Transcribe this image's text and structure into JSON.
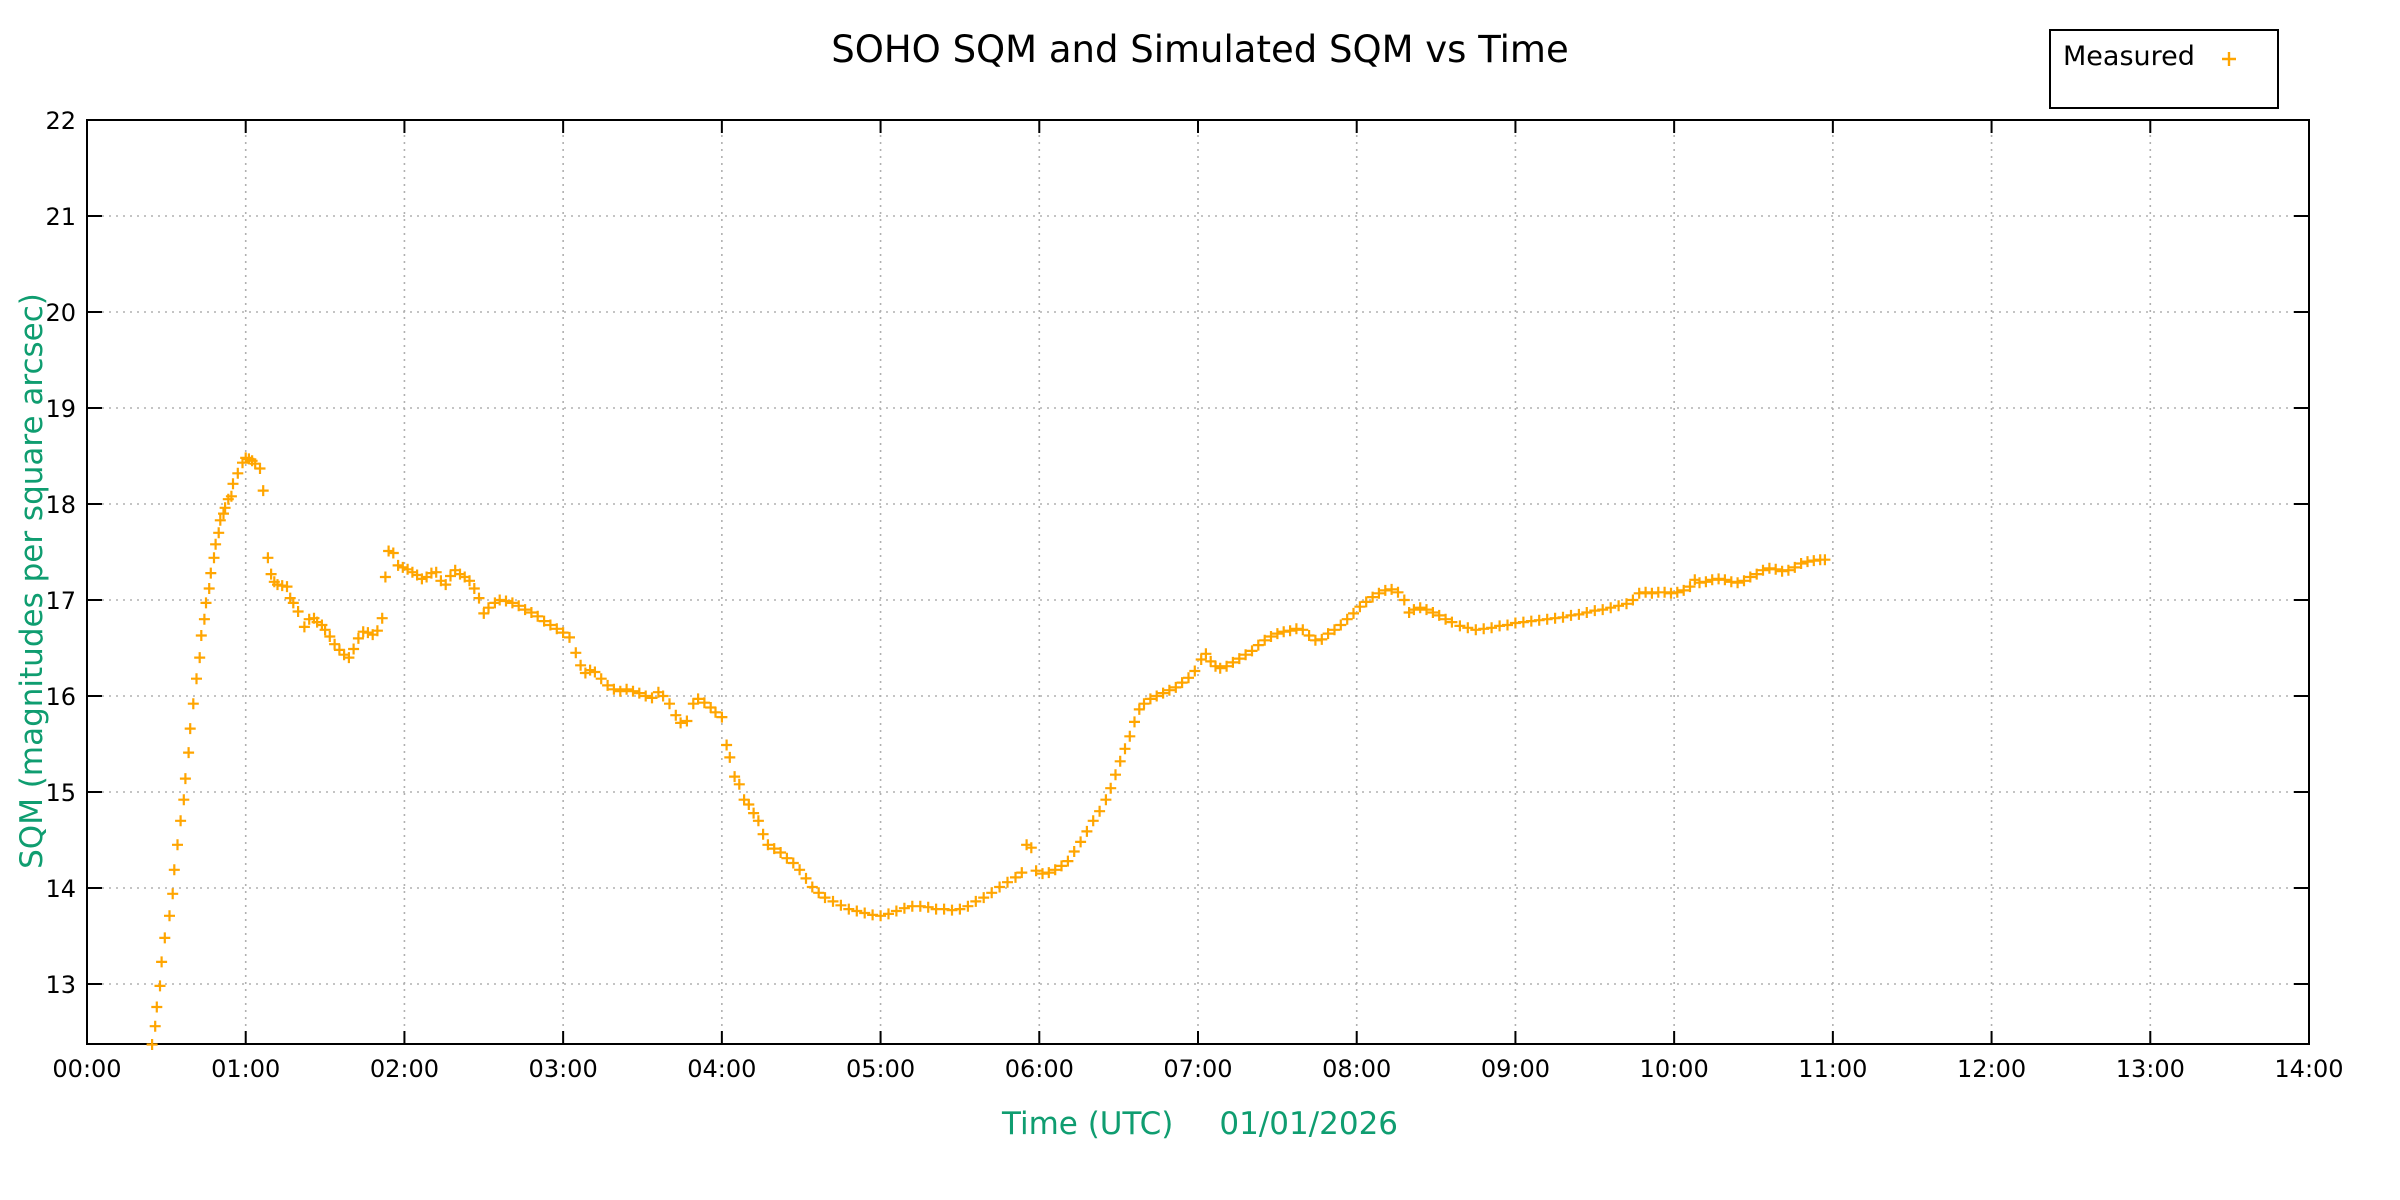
{
  "chart": {
    "title": "SOHO SQM and Simulated SQM vs Time",
    "background": "#ffffff"
  },
  "legend": {
    "label": "Measured",
    "marker": "plus-icon",
    "marker_color": "#FFA500",
    "position": "top-right-outside"
  },
  "axes": {
    "x": {
      "label": "Time (UTC)",
      "date": "01/01/2026",
      "color": "#0f9d70",
      "ticks": [
        "00:00",
        "01:00",
        "02:00",
        "03:00",
        "04:00",
        "05:00",
        "06:00",
        "07:00",
        "08:00",
        "09:00",
        "10:00",
        "11:00",
        "12:00",
        "13:00",
        "14:00"
      ]
    },
    "y": {
      "label": "SQM (magnitudes per square arcsec)",
      "color": "#0f9d70",
      "ticks": [
        "13",
        "14",
        "15",
        "16",
        "17",
        "18",
        "19",
        "20",
        "21",
        "22"
      ]
    }
  },
  "grid": {
    "style": "dotted",
    "color": "#b0b0b0"
  },
  "chart_data": {
    "type": "scatter",
    "title": "SOHO SQM and Simulated SQM vs Time",
    "xlabel": "Time (UTC)   01/01/2026",
    "ylabel": "SQM (magnitudes per square arcsec)",
    "x_unit": "hours_utc",
    "xlim": [
      0,
      14
    ],
    "ylim": [
      12.375,
      22
    ],
    "grid": true,
    "legend_position": "top-right-outside",
    "series": [
      {
        "name": "Measured",
        "marker": "plus",
        "color": "#FFA500",
        "approx_sample_interval_min": 2,
        "points": [
          [
            0.41,
            12.37
          ],
          [
            0.43,
            12.56
          ],
          [
            0.44,
            12.76
          ],
          [
            0.46,
            12.98
          ],
          [
            0.47,
            13.23
          ],
          [
            0.49,
            13.48
          ],
          [
            0.52,
            13.71
          ],
          [
            0.54,
            13.94
          ],
          [
            0.55,
            14.19
          ],
          [
            0.57,
            14.45
          ],
          [
            0.59,
            14.7
          ],
          [
            0.61,
            14.92
          ],
          [
            0.62,
            15.14
          ],
          [
            0.64,
            15.41
          ],
          [
            0.65,
            15.66
          ],
          [
            0.67,
            15.92
          ],
          [
            0.69,
            16.18
          ],
          [
            0.71,
            16.4
          ],
          [
            0.72,
            16.63
          ],
          [
            0.74,
            16.8
          ],
          [
            0.75,
            16.97
          ],
          [
            0.77,
            17.12
          ],
          [
            0.78,
            17.28
          ],
          [
            0.8,
            17.44
          ],
          [
            0.81,
            17.58
          ],
          [
            0.83,
            17.7
          ],
          [
            0.84,
            17.83
          ],
          [
            0.86,
            17.9
          ],
          [
            0.87,
            17.96
          ],
          [
            0.89,
            18.05
          ],
          [
            0.91,
            18.08
          ],
          [
            0.92,
            18.21
          ],
          [
            0.95,
            18.32
          ],
          [
            0.98,
            18.43
          ],
          [
            1.0,
            18.48
          ],
          [
            1.02,
            18.47
          ],
          [
            1.04,
            18.45
          ],
          [
            1.06,
            18.42
          ],
          [
            1.09,
            18.37
          ],
          [
            1.11,
            18.14
          ],
          [
            1.14,
            17.44
          ],
          [
            1.16,
            17.27
          ],
          [
            1.18,
            17.19
          ],
          [
            1.2,
            17.16
          ],
          [
            1.23,
            17.15
          ],
          [
            1.26,
            17.14
          ],
          [
            1.28,
            17.02
          ],
          [
            1.3,
            16.97
          ],
          [
            1.33,
            16.88
          ],
          [
            1.37,
            16.72
          ],
          [
            1.4,
            16.8
          ],
          [
            1.43,
            16.81
          ],
          [
            1.45,
            16.77
          ],
          [
            1.48,
            16.74
          ],
          [
            1.5,
            16.69
          ],
          [
            1.53,
            16.62
          ],
          [
            1.56,
            16.54
          ],
          [
            1.59,
            16.48
          ],
          [
            1.62,
            16.43
          ],
          [
            1.65,
            16.4
          ],
          [
            1.68,
            16.49
          ],
          [
            1.71,
            16.6
          ],
          [
            1.74,
            16.67
          ],
          [
            1.77,
            16.66
          ],
          [
            1.8,
            16.64
          ],
          [
            1.83,
            16.68
          ],
          [
            1.86,
            16.81
          ],
          [
            1.88,
            17.24
          ],
          [
            1.9,
            17.51
          ],
          [
            1.93,
            17.49
          ],
          [
            1.96,
            17.36
          ],
          [
            1.99,
            17.34
          ],
          [
            2.02,
            17.32
          ],
          [
            2.05,
            17.29
          ],
          [
            2.08,
            17.26
          ],
          [
            2.11,
            17.22
          ],
          [
            2.14,
            17.24
          ],
          [
            2.17,
            17.28
          ],
          [
            2.2,
            17.29
          ],
          [
            2.23,
            17.2
          ],
          [
            2.26,
            17.16
          ],
          [
            2.29,
            17.25
          ],
          [
            2.32,
            17.31
          ],
          [
            2.35,
            17.27
          ],
          [
            2.38,
            17.24
          ],
          [
            2.41,
            17.2
          ],
          [
            2.44,
            17.12
          ],
          [
            2.47,
            17.02
          ],
          [
            2.5,
            16.86
          ],
          [
            2.53,
            16.92
          ],
          [
            2.57,
            16.97
          ],
          [
            2.6,
            17.0
          ],
          [
            2.64,
            16.99
          ],
          [
            2.68,
            16.97
          ],
          [
            2.72,
            16.94
          ],
          [
            2.76,
            16.9
          ],
          [
            2.8,
            16.87
          ],
          [
            2.84,
            16.83
          ],
          [
            2.88,
            16.78
          ],
          [
            2.92,
            16.74
          ],
          [
            2.96,
            16.7
          ],
          [
            3.0,
            16.66
          ],
          [
            3.04,
            16.61
          ],
          [
            3.08,
            16.45
          ],
          [
            3.11,
            16.32
          ],
          [
            3.14,
            16.24
          ],
          [
            3.17,
            16.27
          ],
          [
            3.2,
            16.25
          ],
          [
            3.24,
            16.18
          ],
          [
            3.28,
            16.11
          ],
          [
            3.32,
            16.07
          ],
          [
            3.36,
            16.05
          ],
          [
            3.4,
            16.07
          ],
          [
            3.44,
            16.05
          ],
          [
            3.48,
            16.03
          ],
          [
            3.52,
            16.0
          ],
          [
            3.56,
            15.98
          ],
          [
            3.6,
            16.04
          ],
          [
            3.63,
            16.0
          ],
          [
            3.67,
            15.92
          ],
          [
            3.71,
            15.8
          ],
          [
            3.74,
            15.72
          ],
          [
            3.78,
            15.74
          ],
          [
            3.82,
            15.92
          ],
          [
            3.85,
            15.97
          ],
          [
            3.89,
            15.93
          ],
          [
            3.93,
            15.88
          ],
          [
            3.96,
            15.83
          ],
          [
            4.0,
            15.78
          ],
          [
            4.03,
            15.49
          ],
          [
            4.05,
            15.36
          ],
          [
            4.08,
            15.16
          ],
          [
            4.11,
            15.08
          ],
          [
            4.14,
            14.92
          ],
          [
            4.17,
            14.87
          ],
          [
            4.2,
            14.78
          ],
          [
            4.23,
            14.7
          ],
          [
            4.26,
            14.56
          ],
          [
            4.29,
            14.45
          ],
          [
            4.33,
            14.41
          ],
          [
            4.37,
            14.37
          ],
          [
            4.41,
            14.31
          ],
          [
            4.45,
            14.26
          ],
          [
            4.49,
            14.19
          ],
          [
            4.53,
            14.1
          ],
          [
            4.57,
            14.01
          ],
          [
            4.61,
            13.95
          ],
          [
            4.65,
            13.9
          ],
          [
            4.7,
            13.86
          ],
          [
            4.75,
            13.82
          ],
          [
            4.8,
            13.78
          ],
          [
            4.85,
            13.76
          ],
          [
            4.9,
            13.74
          ],
          [
            4.95,
            13.72
          ],
          [
            5.0,
            13.71
          ],
          [
            5.05,
            13.73
          ],
          [
            5.1,
            13.76
          ],
          [
            5.15,
            13.79
          ],
          [
            5.2,
            13.81
          ],
          [
            5.25,
            13.81
          ],
          [
            5.3,
            13.8
          ],
          [
            5.35,
            13.78
          ],
          [
            5.4,
            13.78
          ],
          [
            5.45,
            13.77
          ],
          [
            5.5,
            13.78
          ],
          [
            5.55,
            13.81
          ],
          [
            5.6,
            13.86
          ],
          [
            5.65,
            13.9
          ],
          [
            5.7,
            13.95
          ],
          [
            5.75,
            14.01
          ],
          [
            5.8,
            14.06
          ],
          [
            5.85,
            14.11
          ],
          [
            5.89,
            14.16
          ],
          [
            5.92,
            14.45
          ],
          [
            5.95,
            14.42
          ],
          [
            5.98,
            14.18
          ],
          [
            6.02,
            14.15
          ],
          [
            6.06,
            14.16
          ],
          [
            6.1,
            14.19
          ],
          [
            6.14,
            14.23
          ],
          [
            6.18,
            14.28
          ],
          [
            6.22,
            14.38
          ],
          [
            6.26,
            14.48
          ],
          [
            6.3,
            14.59
          ],
          [
            6.34,
            14.7
          ],
          [
            6.38,
            14.8
          ],
          [
            6.42,
            14.92
          ],
          [
            6.45,
            15.04
          ],
          [
            6.48,
            15.18
          ],
          [
            6.51,
            15.32
          ],
          [
            6.54,
            15.45
          ],
          [
            6.57,
            15.58
          ],
          [
            6.6,
            15.73
          ],
          [
            6.63,
            15.86
          ],
          [
            6.66,
            15.92
          ],
          [
            6.7,
            15.97
          ],
          [
            6.74,
            16.0
          ],
          [
            6.78,
            16.03
          ],
          [
            6.82,
            16.06
          ],
          [
            6.86,
            16.09
          ],
          [
            6.9,
            16.14
          ],
          [
            6.94,
            16.19
          ],
          [
            6.98,
            16.26
          ],
          [
            7.02,
            16.38
          ],
          [
            7.05,
            16.44
          ],
          [
            7.08,
            16.36
          ],
          [
            7.11,
            16.31
          ],
          [
            7.14,
            16.29
          ],
          [
            7.18,
            16.31
          ],
          [
            7.22,
            16.35
          ],
          [
            7.26,
            16.39
          ],
          [
            7.3,
            16.43
          ],
          [
            7.34,
            16.47
          ],
          [
            7.38,
            16.53
          ],
          [
            7.42,
            16.58
          ],
          [
            7.46,
            16.62
          ],
          [
            7.5,
            16.65
          ],
          [
            7.54,
            16.67
          ],
          [
            7.58,
            16.68
          ],
          [
            7.62,
            16.7
          ],
          [
            7.66,
            16.69
          ],
          [
            7.7,
            16.63
          ],
          [
            7.74,
            16.58
          ],
          [
            7.78,
            16.59
          ],
          [
            7.82,
            16.65
          ],
          [
            7.86,
            16.69
          ],
          [
            7.9,
            16.74
          ],
          [
            7.94,
            16.8
          ],
          [
            7.98,
            16.86
          ],
          [
            8.02,
            16.93
          ],
          [
            8.06,
            16.98
          ],
          [
            8.1,
            17.03
          ],
          [
            8.14,
            17.07
          ],
          [
            8.18,
            17.1
          ],
          [
            8.22,
            17.11
          ],
          [
            8.26,
            17.08
          ],
          [
            8.3,
            17.0
          ],
          [
            8.33,
            16.87
          ],
          [
            8.36,
            16.9
          ],
          [
            8.4,
            16.92
          ],
          [
            8.44,
            16.9
          ],
          [
            8.48,
            16.87
          ],
          [
            8.52,
            16.84
          ],
          [
            8.56,
            16.8
          ],
          [
            8.6,
            16.77
          ],
          [
            8.65,
            16.73
          ],
          [
            8.7,
            16.71
          ],
          [
            8.75,
            16.69
          ],
          [
            8.8,
            16.7
          ],
          [
            8.85,
            16.71
          ],
          [
            8.9,
            16.73
          ],
          [
            8.95,
            16.74
          ],
          [
            9.0,
            16.76
          ],
          [
            9.05,
            16.77
          ],
          [
            9.1,
            16.78
          ],
          [
            9.15,
            16.79
          ],
          [
            9.2,
            16.8
          ],
          [
            9.25,
            16.81
          ],
          [
            9.3,
            16.82
          ],
          [
            9.35,
            16.84
          ],
          [
            9.4,
            16.85
          ],
          [
            9.45,
            16.87
          ],
          [
            9.5,
            16.89
          ],
          [
            9.55,
            16.9
          ],
          [
            9.6,
            16.92
          ],
          [
            9.65,
            16.94
          ],
          [
            9.7,
            16.96
          ],
          [
            9.74,
            17.0
          ],
          [
            9.78,
            17.07
          ],
          [
            9.82,
            17.08
          ],
          [
            9.86,
            17.07
          ],
          [
            9.9,
            17.08
          ],
          [
            9.94,
            17.08
          ],
          [
            9.98,
            17.07
          ],
          [
            10.02,
            17.08
          ],
          [
            10.06,
            17.1
          ],
          [
            10.1,
            17.14
          ],
          [
            10.13,
            17.21
          ],
          [
            10.16,
            17.18
          ],
          [
            10.2,
            17.19
          ],
          [
            10.24,
            17.21
          ],
          [
            10.28,
            17.22
          ],
          [
            10.32,
            17.21
          ],
          [
            10.36,
            17.19
          ],
          [
            10.4,
            17.18
          ],
          [
            10.44,
            17.2
          ],
          [
            10.48,
            17.24
          ],
          [
            10.52,
            17.27
          ],
          [
            10.56,
            17.31
          ],
          [
            10.6,
            17.33
          ],
          [
            10.64,
            17.32
          ],
          [
            10.68,
            17.3
          ],
          [
            10.72,
            17.31
          ],
          [
            10.76,
            17.34
          ],
          [
            10.8,
            17.38
          ],
          [
            10.84,
            17.4
          ],
          [
            10.88,
            17.41
          ],
          [
            10.92,
            17.42
          ],
          [
            10.95,
            17.42
          ]
        ]
      }
    ]
  }
}
